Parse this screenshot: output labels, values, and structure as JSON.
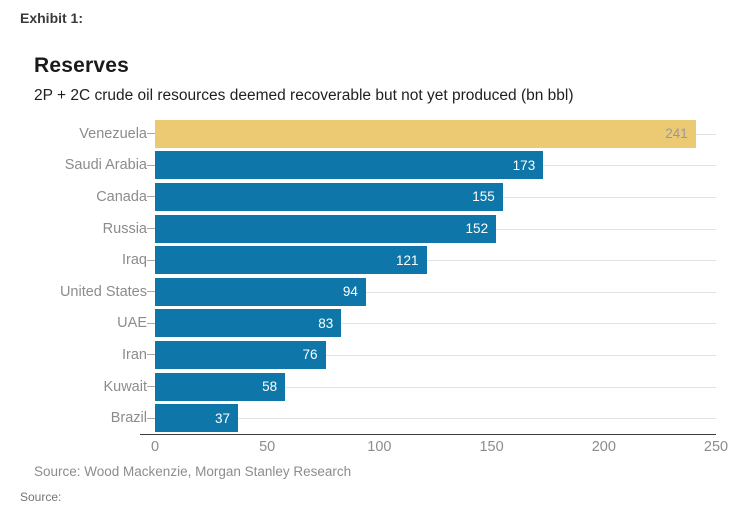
{
  "exhibit_label": "Exhibit 1:",
  "chart_data": {
    "type": "bar",
    "orientation": "horizontal",
    "title": "Reserves",
    "subtitle": "2P + 2C crude oil resources deemed recoverable but not yet produced (bn bbl)",
    "categories": [
      "Venezuela",
      "Saudi Arabia",
      "Canada",
      "Russia",
      "Iraq",
      "United States",
      "UAE",
      "Iran",
      "Kuwait",
      "Brazil"
    ],
    "values": [
      241,
      173,
      155,
      152,
      121,
      94,
      83,
      76,
      58,
      37
    ],
    "xlim": [
      0,
      250
    ],
    "x_ticks": [
      0,
      50,
      100,
      150,
      200,
      250
    ],
    "grid": "row-lines",
    "highlight_category": "Venezuela",
    "colors": {
      "default_bar": "#0e76a8",
      "highlight_bar": "#ecc973",
      "default_value_label": "#ffffff",
      "highlight_value_label": "#9a9a9a"
    },
    "source": "Source: Wood Mackenzie, Morgan Stanley Research"
  },
  "footer": {
    "source_label": "Source:"
  }
}
